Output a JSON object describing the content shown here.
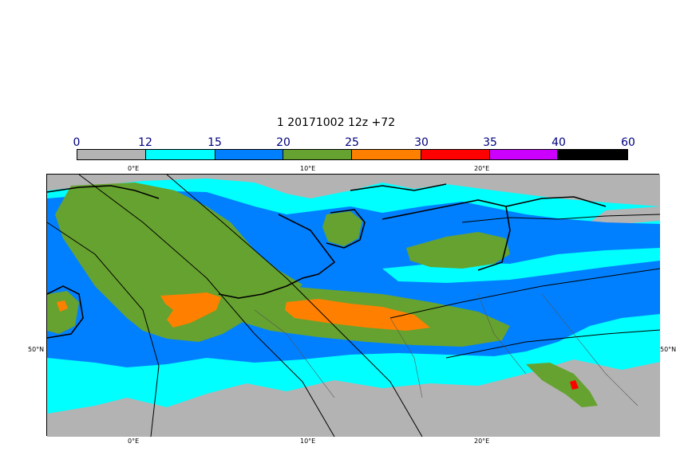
{
  "title": "1 20171002 12z +72",
  "colorbar": {
    "labels": [
      "0",
      "12",
      "15",
      "20",
      "25",
      "30",
      "35",
      "40",
      "60"
    ],
    "colors": [
      "#b3b3b3",
      "#00ffff",
      "#0080ff",
      "#66a22f",
      "#ff8000",
      "#ff0000",
      "#cc00ff",
      "#000000"
    ]
  },
  "axes": {
    "lon_top": [
      "0°E",
      "10°E",
      "20°E"
    ],
    "lon_bottom": [
      "0°E",
      "10°E",
      "20°E"
    ],
    "lat_left": "50°N",
    "lat_right": "50°N"
  },
  "palette": {
    "land_gray": "#b3b3b3",
    "cyan": "#00ffff",
    "blue": "#0080ff",
    "green": "#66a22f",
    "orange": "#ff8000",
    "red": "#ff0000"
  }
}
